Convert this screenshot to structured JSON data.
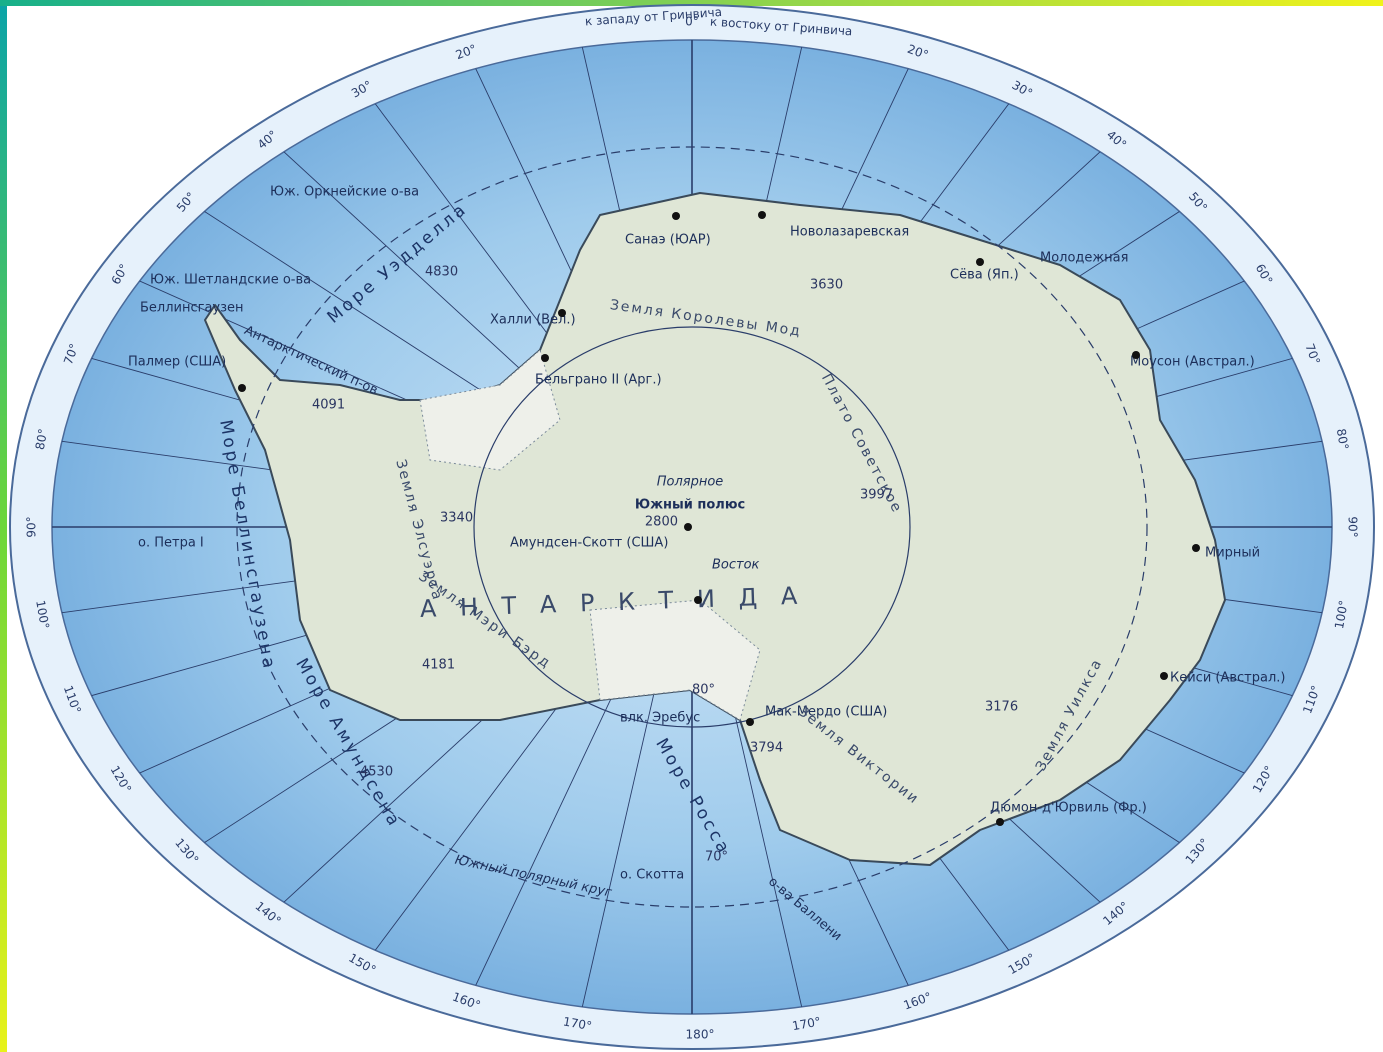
{
  "header": {
    "west": "к западу от Гринвича",
    "east": "к востоку от Гринвича",
    "zero": "0°"
  },
  "degrees_left": [
    "20°",
    "30°",
    "40°",
    "50°",
    "60°",
    "70°",
    "80°",
    "90°",
    "100°",
    "110°",
    "120°",
    "130°",
    "140°",
    "150°",
    "160°",
    "170°"
  ],
  "degrees_right": [
    "20°",
    "30°",
    "40°",
    "50°",
    "60°",
    "70°",
    "80°",
    "90°",
    "100°",
    "110°",
    "120°",
    "130°",
    "140°",
    "150°",
    "160°",
    "170°"
  ],
  "bottom": "180°",
  "places": [
    "Юж. Оркнейские о-ва",
    "Юж. Шетландские о-ва",
    "Беллинсгаузен",
    "Палмер (США)",
    "о. Петра I",
    "Халли (Вел.)",
    "Бельграно II (Арг.)",
    "Санаэ (ЮАР)",
    "Новолазаревская",
    "Сёва (Яп.)",
    "Молодежная",
    "Моусон (Австрал.)",
    "Мирный",
    "Кейси (Австрал.)",
    "Дюмон-д'Юрвиль (Фр.)",
    "Мак-Мердо (США)",
    "влк. Эребус",
    "Амундсен-Скотт (США)",
    "Полярное",
    "Южный полюс",
    "Восток",
    "о. Скотта",
    "о-ва Баллени",
    "Южный полярный круг"
  ],
  "seas": [
    "Море Уэдделла",
    "Море Росса",
    "Море Беллинсгаузена",
    "Море Амундсена"
  ],
  "regions": [
    "Земля Королевы Мод",
    "Плато Советское",
    "Земля Уилкса",
    "Земля Виктории",
    "Земля Мэри Бэрд",
    "Земля Элсуэрта",
    "Антарктический п-ов",
    "А Н Т А Р К Т И Д А"
  ],
  "heights": [
    "4830",
    "3630",
    "4091",
    "3340",
    "3997",
    "2800",
    "4181",
    "4530",
    "3794",
    "3176",
    "80°",
    "70°"
  ]
}
